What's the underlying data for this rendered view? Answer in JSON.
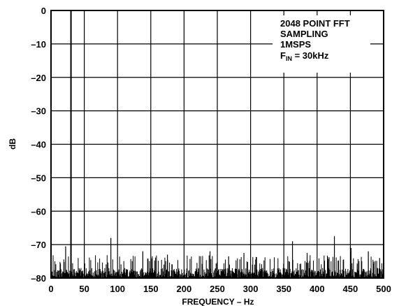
{
  "chart_data": {
    "type": "line",
    "xlabel": "FREQUENCY – Hz",
    "ylabel": "dB",
    "xlim": [
      0,
      500
    ],
    "ylim": [
      -80,
      0
    ],
    "grid": true,
    "x_ticks": [
      "0",
      "50",
      "100",
      "150",
      "200",
      "250",
      "300",
      "350",
      "400",
      "450",
      "500"
    ],
    "y_ticks": [
      "0",
      "–10",
      "–20",
      "–30",
      "–40",
      "–50",
      "–60",
      "–70",
      "–80"
    ],
    "annotation": {
      "line1": "2048 POINT FFT",
      "line2": "SAMPLING",
      "line3": "1MSPS",
      "line4_main": "F",
      "line4_sub": "IN",
      "line4_rest": " = 30kHz"
    },
    "fundamental": {
      "x": 30,
      "y": 0
    },
    "noise_spurs": [
      {
        "x": 22,
        "y": -70.5
      },
      {
        "x": 90,
        "y": -68
      },
      {
        "x": 138,
        "y": -72
      },
      {
        "x": 175,
        "y": -73
      },
      {
        "x": 239,
        "y": -72
      },
      {
        "x": 267,
        "y": -73.5
      },
      {
        "x": 290,
        "y": -72.5
      },
      {
        "x": 363,
        "y": -69
      },
      {
        "x": 385,
        "y": -72.5
      },
      {
        "x": 426,
        "y": -67.5
      },
      {
        "x": 451,
        "y": -71
      },
      {
        "x": 477,
        "y": -72
      },
      {
        "x": 494,
        "y": -74
      }
    ],
    "noise_floor": -76
  }
}
